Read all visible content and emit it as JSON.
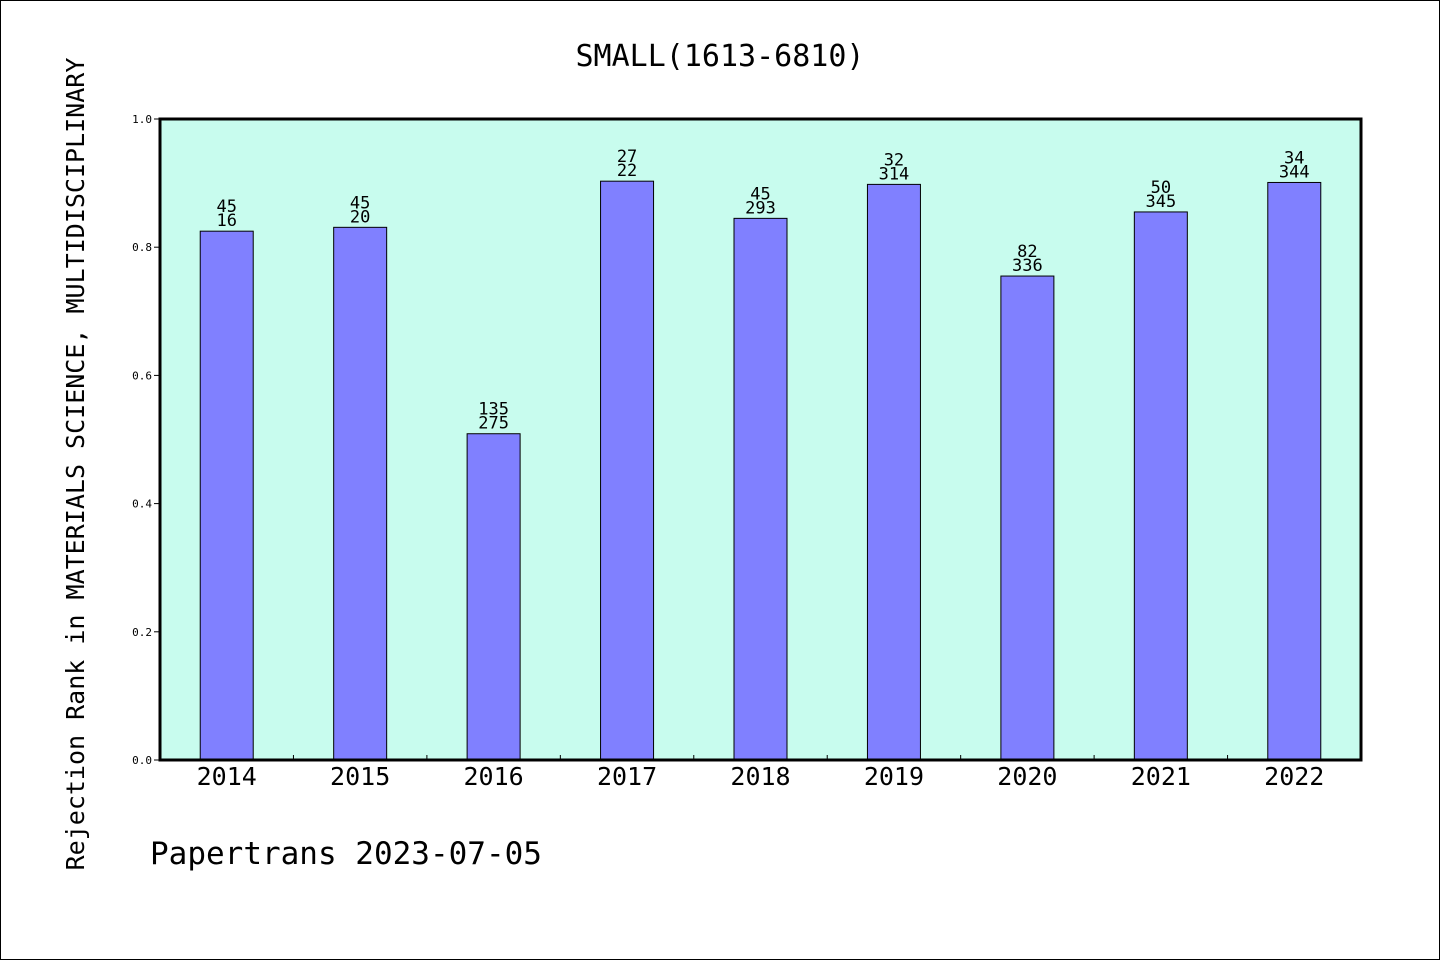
{
  "chart_data": {
    "type": "bar",
    "title": "SMALL(1613-6810)",
    "ylabel": "Rejection Rank in MATERIALS SCIENCE, MULTIDISCIPLINARY",
    "xlabel": "",
    "categories": [
      "2014",
      "2015",
      "2016",
      "2017",
      "2018",
      "2019",
      "2020",
      "2021",
      "2022"
    ],
    "values": [
      0.825,
      0.831,
      0.509,
      0.903,
      0.845,
      0.898,
      0.755,
      0.855,
      0.901
    ],
    "labels_top": [
      "45",
      "45",
      "135",
      "27",
      "45",
      "32",
      "82",
      "50",
      "34"
    ],
    "labels_bottom": [
      "16",
      "20",
      "275",
      "22",
      "293",
      "314",
      "336",
      "345",
      "344"
    ],
    "ylim": [
      0,
      1.0
    ],
    "yticks": [
      "0.0",
      "0.2",
      "0.4",
      "0.6",
      "0.8",
      "1.0"
    ],
    "grid": false,
    "colors": {
      "bar": "#8080ff",
      "plot_background": "#c8fcee",
      "axis": "#000000"
    }
  },
  "footer": {
    "credit": "Papertrans 2023-07-05"
  }
}
